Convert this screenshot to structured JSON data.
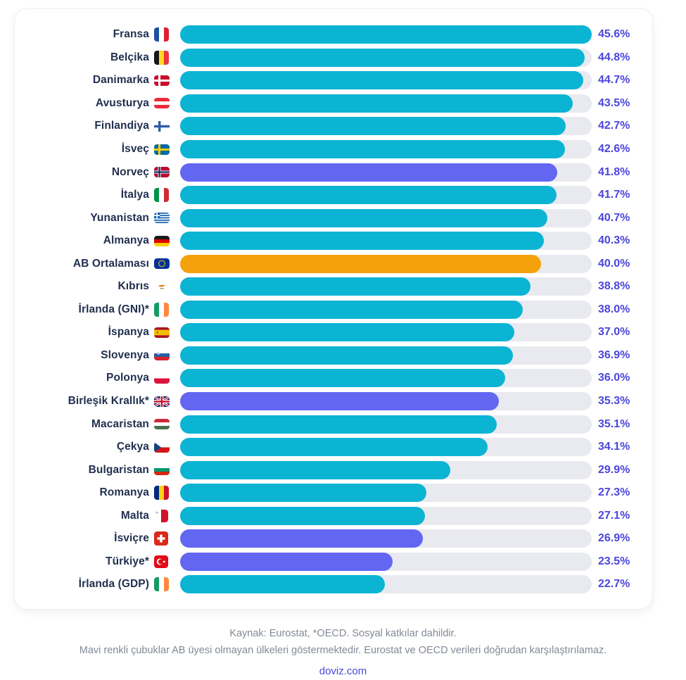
{
  "chart_data": {
    "type": "bar",
    "orientation": "horizontal",
    "unit": "%",
    "xlim": [
      0,
      45.6
    ],
    "grid": false,
    "legend": "none",
    "bar_groups": {
      "eu": "EU member (cyan bar)",
      "non_eu": "Non-EU country (blue/indigo bar)",
      "average": "EU average (orange bar)"
    },
    "rows": [
      {
        "label": "Fransa",
        "flag": "fr",
        "icon": "france-flag-icon",
        "value": 45.6,
        "display": "45.6%",
        "group": "eu"
      },
      {
        "label": "Belçika",
        "flag": "be",
        "icon": "belgium-flag-icon",
        "value": 44.8,
        "display": "44.8%",
        "group": "eu"
      },
      {
        "label": "Danimarka",
        "flag": "dk",
        "icon": "denmark-flag-icon",
        "value": 44.7,
        "display": "44.7%",
        "group": "eu"
      },
      {
        "label": "Avusturya",
        "flag": "at",
        "icon": "austria-flag-icon",
        "value": 43.5,
        "display": "43.5%",
        "group": "eu"
      },
      {
        "label": "Finlandiya",
        "flag": "fi",
        "icon": "finland-flag-icon",
        "value": 42.7,
        "display": "42.7%",
        "group": "eu"
      },
      {
        "label": "İsveç",
        "flag": "se",
        "icon": "sweden-flag-icon",
        "value": 42.6,
        "display": "42.6%",
        "group": "eu"
      },
      {
        "label": "Norveç",
        "flag": "no",
        "icon": "norway-flag-icon",
        "value": 41.8,
        "display": "41.8%",
        "group": "non_eu"
      },
      {
        "label": "İtalya",
        "flag": "it",
        "icon": "italy-flag-icon",
        "value": 41.7,
        "display": "41.7%",
        "group": "eu"
      },
      {
        "label": "Yunanistan",
        "flag": "gr",
        "icon": "greece-flag-icon",
        "value": 40.7,
        "display": "40.7%",
        "group": "eu"
      },
      {
        "label": "Almanya",
        "flag": "de",
        "icon": "germany-flag-icon",
        "value": 40.3,
        "display": "40.3%",
        "group": "eu"
      },
      {
        "label": "AB Ortalaması",
        "flag": "eu",
        "icon": "eu-flag-icon",
        "value": 40.0,
        "display": "40.0%",
        "group": "average"
      },
      {
        "label": "Kıbrıs",
        "flag": "cy",
        "icon": "cyprus-flag-icon",
        "value": 38.8,
        "display": "38.8%",
        "group": "eu"
      },
      {
        "label": "İrlanda (GNI)*",
        "flag": "ie",
        "icon": "ireland-flag-icon",
        "value": 38.0,
        "display": "38.0%",
        "group": "eu"
      },
      {
        "label": "İspanya",
        "flag": "es",
        "icon": "spain-flag-icon",
        "value": 37.0,
        "display": "37.0%",
        "group": "eu"
      },
      {
        "label": "Slovenya",
        "flag": "si",
        "icon": "slovenia-flag-icon",
        "value": 36.9,
        "display": "36.9%",
        "group": "eu"
      },
      {
        "label": "Polonya",
        "flag": "pl",
        "icon": "poland-flag-icon",
        "value": 36.0,
        "display": "36.0%",
        "group": "eu"
      },
      {
        "label": "Birleşik Krallık*",
        "flag": "gb",
        "icon": "uk-flag-icon",
        "value": 35.3,
        "display": "35.3%",
        "group": "non_eu"
      },
      {
        "label": "Macaristan",
        "flag": "hu",
        "icon": "hungary-flag-icon",
        "value": 35.1,
        "display": "35.1%",
        "group": "eu"
      },
      {
        "label": "Çekya",
        "flag": "cz",
        "icon": "czechia-flag-icon",
        "value": 34.1,
        "display": "34.1%",
        "group": "eu"
      },
      {
        "label": "Bulgaristan",
        "flag": "bg",
        "icon": "bulgaria-flag-icon",
        "value": 29.9,
        "display": "29.9%",
        "group": "eu"
      },
      {
        "label": "Romanya",
        "flag": "ro",
        "icon": "romania-flag-icon",
        "value": 27.3,
        "display": "27.3%",
        "group": "eu"
      },
      {
        "label": "Malta",
        "flag": "mt",
        "icon": "malta-flag-icon",
        "value": 27.1,
        "display": "27.1%",
        "group": "eu"
      },
      {
        "label": "İsviçre",
        "flag": "ch",
        "icon": "switzerland-flag-icon",
        "value": 26.9,
        "display": "26.9%",
        "group": "non_eu"
      },
      {
        "label": "Türkiye*",
        "flag": "tr",
        "icon": "turkey-flag-icon",
        "value": 23.5,
        "display": "23.5%",
        "group": "non_eu"
      },
      {
        "label": "İrlanda (GDP)",
        "flag": "ie",
        "icon": "ireland-flag-icon",
        "value": 22.7,
        "display": "22.7%",
        "group": "eu"
      }
    ]
  },
  "colors": {
    "bar_eu": "#0cb4d4",
    "bar_non_eu": "#6366f1",
    "bar_average": "#f5a10b",
    "track": "#e9eaef",
    "value_text": "#4b46db",
    "label_text": "#21304f"
  },
  "footer": {
    "line1": "Kaynak: Eurostat, *OECD. Sosyal katkılar dahildir.",
    "line2": "Mavi renkli çubuklar AB üyesi olmayan ülkeleri göstermektedir. Eurostat ve OECD verileri doğrudan karşılaştırılamaz.",
    "source_link": "doviz.com"
  }
}
